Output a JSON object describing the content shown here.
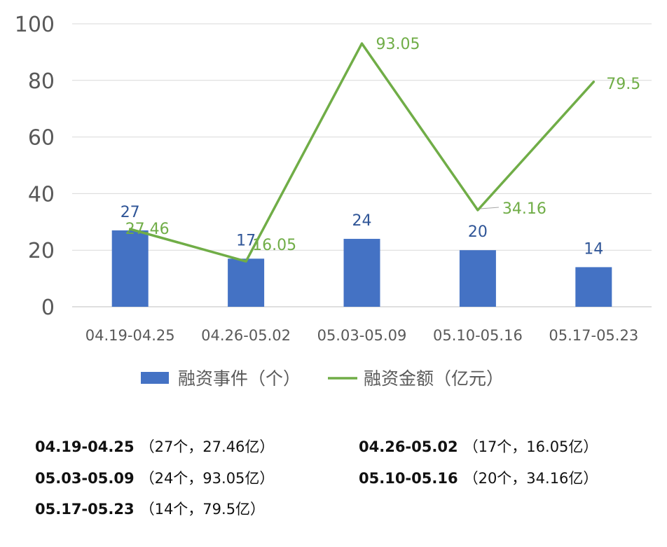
{
  "chart_data": {
    "type": "bar+line",
    "categories": [
      "04.19-04.25",
      "04.26-05.02",
      "05.03-05.09",
      "05.10-05.16",
      "05.17-05.23"
    ],
    "series": [
      {
        "name": "融资事件（个）",
        "type": "bar",
        "values": [
          27,
          17,
          24,
          20,
          14
        ],
        "color": "#4472C4",
        "label_color": "#2F5597"
      },
      {
        "name": "融资金额（亿元）",
        "type": "line",
        "values": [
          27.46,
          16.05,
          93.05,
          34.16,
          79.5
        ],
        "color": "#70AD47",
        "label_color": "#70AD47"
      }
    ],
    "bar_labels": [
      "27",
      "17",
      "24",
      "20",
      "14"
    ],
    "line_labels": [
      "27.46",
      "16.05",
      "93.05",
      "34.16",
      "79.5"
    ],
    "yticks": [
      "0",
      "20",
      "40",
      "60",
      "80",
      "100"
    ],
    "ylim": [
      0,
      100
    ],
    "grid": true,
    "legend_position": "bottom",
    "title": "",
    "xlabel": "",
    "ylabel": ""
  },
  "summary": [
    {
      "period": "04.19-04.25",
      "detail": "（27个，27.46亿）"
    },
    {
      "period": "04.26-05.02",
      "detail": "（17个，16.05亿）"
    },
    {
      "period": "05.03-05.09",
      "detail": "（24个，93.05亿）"
    },
    {
      "period": "05.10-05.16",
      "detail": "（20个，34.16亿）"
    },
    {
      "period": "05.17-05.23",
      "detail": "（14个，79.5亿）"
    }
  ]
}
